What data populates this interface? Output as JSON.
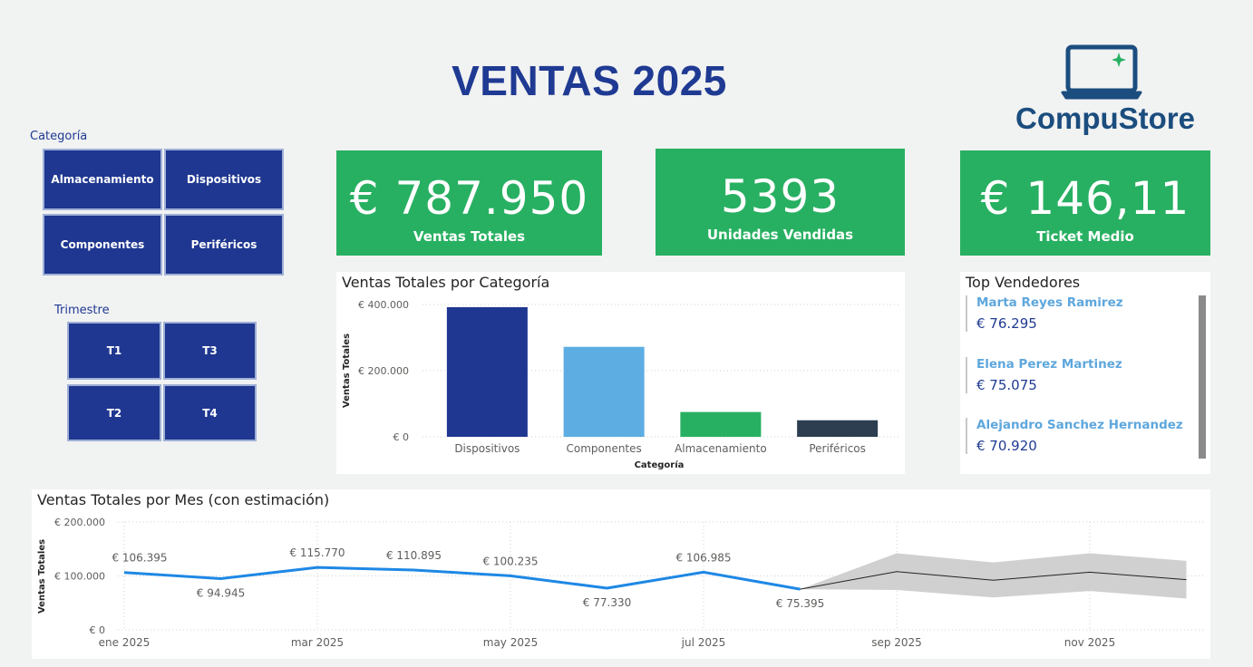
{
  "header": {
    "title": "VENTAS 2025"
  },
  "logo": {
    "name": "CompuStore",
    "icon": "laptop-icon",
    "colors": {
      "outline": "#1b4d7e",
      "sparkle": "#28b062"
    }
  },
  "filters": {
    "categoria": {
      "label": "Categoría",
      "options": [
        "Almacenamiento",
        "Dispositivos",
        "Componentes",
        "Periféricos"
      ]
    },
    "trimestre": {
      "label": "Trimestre",
      "options": [
        "T1",
        "T3",
        "T2",
        "T4"
      ]
    }
  },
  "kpis": [
    {
      "value": "€ 787.950",
      "label": "Ventas Totales"
    },
    {
      "value": "5393",
      "label": "Unidades Vendidas"
    },
    {
      "value": "€ 146,11",
      "label": "Ticket Medio"
    }
  ],
  "top_vendedores": {
    "title": "Top Vendedores",
    "items": [
      {
        "name": "Marta Reyes Ramirez",
        "value": "€ 76.295"
      },
      {
        "name": "Elena Perez Martinez",
        "value": "€ 75.075"
      },
      {
        "name": "Alejandro Sanchez Hernandez",
        "value": "€ 70.920"
      }
    ]
  },
  "colors": {
    "kpi_bg": "#28b062",
    "slicer_bg": "#1f3790",
    "title": "#1f3a93",
    "line": "#1e88e5",
    "forecast_band": "#d0d0d0"
  },
  "chart_data": [
    {
      "type": "bar",
      "title": "Ventas Totales por Categoría",
      "xlabel": "Categoría",
      "ylabel": "Ventas Totales",
      "categories": [
        "Dispositivos",
        "Componentes",
        "Almacenamiento",
        "Periféricos"
      ],
      "values": [
        392000,
        272000,
        75000,
        50000
      ],
      "colors": [
        "#1f3790",
        "#5dade2",
        "#28b062",
        "#2c3e50"
      ],
      "ylim": [
        0,
        400000
      ],
      "yticks": [
        0,
        200000,
        400000
      ],
      "ytick_labels": [
        "€ 0",
        "€ 200.000",
        "€ 400.000"
      ],
      "grid": true
    },
    {
      "type": "line",
      "title": "Ventas Totales por Mes (con estimación)",
      "ylabel": "Ventas Totales",
      "x": [
        "ene 2025",
        "feb 2025",
        "mar 2025",
        "abr 2025",
        "may 2025",
        "jun 2025",
        "jul 2025",
        "ago 2025"
      ],
      "values": [
        106395,
        94945,
        115770,
        110895,
        100235,
        77330,
        106985,
        75395
      ],
      "data_labels": [
        "€ 106.395",
        "€ 94.945",
        "€ 115.770",
        "€ 110.895",
        "€ 100.235",
        "€ 77.330",
        "€ 106.985",
        "€ 75.395"
      ],
      "forecast": {
        "x": [
          "ago 2025",
          "sep 2025",
          "oct 2025",
          "nov 2025",
          "dic 2025"
        ],
        "values": [
          75395,
          108000,
          92000,
          107000,
          93000
        ],
        "upper": [
          75395,
          142000,
          125000,
          142000,
          128000
        ],
        "lower": [
          75395,
          74000,
          60000,
          72000,
          58000
        ]
      },
      "xtick_labels": [
        "ene 2025",
        "mar 2025",
        "may 2025",
        "jul 2025",
        "sep 2025",
        "nov 2025"
      ],
      "ylim": [
        0,
        200000
      ],
      "yticks": [
        0,
        100000,
        200000
      ],
      "ytick_labels": [
        "€ 0",
        "€ 100.000",
        "€ 200.000"
      ],
      "grid": true
    }
  ]
}
